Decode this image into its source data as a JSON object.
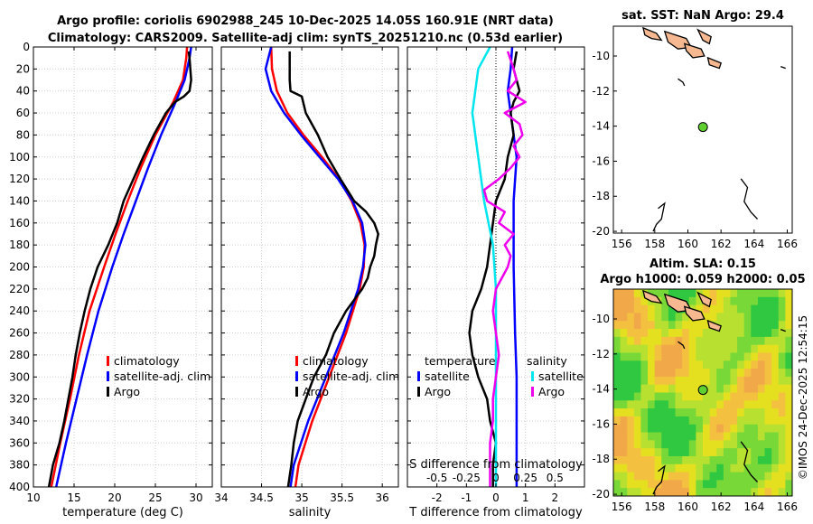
{
  "header": {
    "line1": "Argo profile: coriolis 6902988_245 10-Dec-2025 14.05S 160.91E (NRT data)",
    "line2": "Climatology: CARS2009. Satellite-adj clim: synTS_20251210.nc (0.53d earlier)"
  },
  "colors": {
    "clim": "#ff0000",
    "sat": "#0000ff",
    "argo": "#000000",
    "sat_sal": "#00e5ee",
    "argo_sal": "#ee00ee",
    "land": "#f5b890"
  },
  "chart_data": [
    {
      "id": "temperature",
      "type": "line",
      "xlabel": "temperature (deg C)",
      "ylabel": "",
      "xlim": [
        10,
        32
      ],
      "ylim": [
        400,
        0
      ],
      "xticks": [
        10,
        15,
        20,
        25,
        30
      ],
      "yticks": [
        0,
        20,
        40,
        60,
        80,
        100,
        120,
        140,
        160,
        180,
        200,
        220,
        240,
        260,
        280,
        300,
        320,
        340,
        360,
        380,
        400
      ],
      "grid": true,
      "legend": [
        {
          "label": "climatology",
          "color": "#ff0000"
        },
        {
          "label": "satellite-adj. clim",
          "color": "#0000ff"
        },
        {
          "label": "Argo",
          "color": "#000000"
        }
      ],
      "series": [
        {
          "name": "climatology",
          "color": "#ff0000",
          "depth": [
            0,
            10,
            30,
            50,
            80,
            110,
            140,
            170,
            200,
            240,
            280,
            320,
            360,
            400
          ],
          "values": [
            28.9,
            28.8,
            28.4,
            27.2,
            25.0,
            23.2,
            21.6,
            20.1,
            18.7,
            16.9,
            15.6,
            14.5,
            13.3,
            12.2
          ]
        },
        {
          "name": "satellite-adj. clim",
          "color": "#0000ff",
          "depth": [
            0,
            10,
            30,
            50,
            80,
            110,
            140,
            170,
            200,
            240,
            280,
            320,
            360,
            400
          ],
          "values": [
            29.4,
            29.2,
            28.6,
            27.5,
            25.7,
            24.1,
            22.6,
            21.1,
            19.7,
            18.0,
            16.6,
            15.3,
            14.0,
            12.8
          ]
        },
        {
          "name": "Argo",
          "color": "#000000",
          "depth": [
            4,
            10,
            20,
            30,
            40,
            45,
            50,
            60,
            80,
            100,
            120,
            140,
            160,
            180,
            200,
            220,
            240,
            260,
            280,
            300,
            320,
            340,
            360,
            380,
            400
          ],
          "values": [
            29.1,
            29.2,
            29.3,
            29.4,
            29.2,
            28.5,
            27.4,
            26.3,
            24.8,
            23.5,
            22.3,
            21.1,
            20.3,
            19.2,
            17.9,
            17.0,
            16.3,
            15.7,
            15.2,
            14.8,
            14.3,
            13.8,
            13.2,
            12.4,
            11.9
          ]
        }
      ]
    },
    {
      "id": "salinity",
      "type": "line",
      "xlabel": "salinity",
      "ylabel": "",
      "xlim": [
        34,
        36.2
      ],
      "ylim": [
        400,
        0
      ],
      "xticks": [
        34,
        34.5,
        35,
        35.5,
        36
      ],
      "grid": true,
      "legend": [
        {
          "label": "climatology",
          "color": "#ff0000"
        },
        {
          "label": "satellite-adj. clim",
          "color": "#0000ff"
        },
        {
          "label": "Argo",
          "color": "#000000"
        }
      ],
      "series": [
        {
          "name": "climatology",
          "color": "#ff0000",
          "depth": [
            0,
            20,
            40,
            60,
            80,
            100,
            120,
            140,
            160,
            180,
            200,
            220,
            260,
            300,
            340,
            380,
            400
          ],
          "values": [
            34.62,
            34.63,
            34.69,
            34.82,
            35.02,
            35.25,
            35.46,
            35.62,
            35.73,
            35.78,
            35.77,
            35.72,
            35.55,
            35.34,
            35.13,
            34.96,
            34.92
          ]
        },
        {
          "name": "satellite-adj. clim",
          "color": "#0000ff",
          "depth": [
            0,
            20,
            40,
            60,
            80,
            100,
            120,
            140,
            160,
            180,
            200,
            220,
            260,
            300,
            340,
            380,
            400
          ],
          "values": [
            34.62,
            34.55,
            34.62,
            34.78,
            34.99,
            35.22,
            35.45,
            35.63,
            35.75,
            35.79,
            35.76,
            35.7,
            35.52,
            35.3,
            35.08,
            34.9,
            34.86
          ]
        },
        {
          "name": "Argo",
          "color": "#000000",
          "depth": [
            4,
            30,
            40,
            45,
            60,
            80,
            100,
            120,
            140,
            150,
            160,
            170,
            180,
            190,
            200,
            210,
            220,
            240,
            260,
            280,
            300,
            320,
            340,
            360,
            380,
            400
          ],
          "values": [
            34.85,
            34.85,
            34.86,
            35.0,
            35.05,
            35.2,
            35.32,
            35.48,
            35.65,
            35.8,
            35.9,
            35.95,
            35.92,
            35.9,
            35.85,
            35.82,
            35.75,
            35.55,
            35.4,
            35.3,
            35.15,
            35.05,
            34.95,
            34.9,
            34.87,
            34.83
          ]
        }
      ]
    },
    {
      "id": "difference",
      "type": "line",
      "xlabel": "T difference from climatology",
      "top_xlabel": "S difference from climatology",
      "xlim": [
        -3,
        3
      ],
      "ylim": [
        400,
        0
      ],
      "xticks": [
        -2,
        -1,
        0,
        1,
        2
      ],
      "top_ticks": [
        {
          "label": "-0.5",
          "x": -2
        },
        {
          "label": "-0.25",
          "x": -1
        },
        {
          "label": "0",
          "x": 0
        },
        {
          "label": "0.25",
          "x": 1
        },
        {
          "label": "0.5",
          "x": 2
        }
      ],
      "grid": true,
      "legend_left": {
        "title": "temperature",
        "items": [
          {
            "label": "satellite",
            "color": "#0000ff"
          },
          {
            "label": "Argo",
            "color": "#000000"
          }
        ]
      },
      "legend_right": {
        "title": "salinity",
        "items": [
          {
            "label": "satellite",
            "color": "#00e5ee"
          },
          {
            "label": "Argo",
            "color": "#ee00ee"
          }
        ]
      },
      "series": [
        {
          "name": "T satellite",
          "color": "#0000ff",
          "depth": [
            0,
            20,
            40,
            60,
            100,
            140,
            200,
            260,
            300,
            360,
            400
          ],
          "values": [
            0.55,
            0.5,
            0.4,
            0.5,
            0.7,
            0.6,
            0.6,
            0.65,
            0.7,
            0.7,
            0.7
          ]
        },
        {
          "name": "T Argo",
          "color": "#000000",
          "depth": [
            4,
            20,
            40,
            50,
            60,
            80,
            100,
            120,
            140,
            160,
            180,
            200,
            220,
            240,
            260,
            280,
            300,
            320,
            340,
            360,
            380,
            400
          ],
          "values": [
            0.7,
            0.6,
            0.8,
            0.6,
            0.5,
            0.6,
            0.4,
            0.3,
            0.0,
            -0.1,
            -0.2,
            -0.3,
            -0.5,
            -0.8,
            -0.9,
            -0.8,
            -0.6,
            -0.3,
            -0.2,
            0.0,
            -0.1,
            -0.1
          ]
        },
        {
          "name": "S satellite",
          "color": "#00e5ee",
          "depth": [
            0,
            20,
            60,
            100,
            140,
            180,
            220,
            260,
            300,
            360,
            400
          ],
          "values": [
            -0.2,
            -0.6,
            -0.8,
            -0.6,
            -0.4,
            -0.1,
            0.0,
            0.0,
            0.0,
            0.0,
            0.0
          ]
        },
        {
          "name": "S Argo",
          "color": "#ee00ee",
          "depth": [
            4,
            20,
            30,
            40,
            50,
            60,
            70,
            80,
            90,
            100,
            110,
            120,
            130,
            140,
            150,
            160,
            170,
            180,
            190,
            200,
            220,
            240,
            260,
            280,
            300,
            320,
            340,
            360,
            380,
            400
          ],
          "values": [
            0.4,
            0.6,
            0.7,
            0.4,
            1.0,
            0.3,
            0.8,
            0.9,
            0.6,
            0.8,
            0.5,
            0.1,
            -0.4,
            -0.3,
            0.3,
            0.1,
            0.6,
            0.3,
            0.5,
            0.4,
            0.0,
            -0.1,
            0.0,
            0.1,
            0.0,
            -0.1,
            -0.1,
            -0.2,
            -0.2,
            -0.2
          ]
        }
      ]
    },
    {
      "id": "sst_map",
      "type": "map",
      "title": "sat. SST: NaN Argo: 29.4",
      "xlim": [
        155.5,
        166.3
      ],
      "ylim": [
        -20.1,
        -8.3
      ],
      "xticks": [
        156,
        158,
        160,
        162,
        164,
        166
      ],
      "yticks": [
        -10,
        -12,
        -14,
        -16,
        -18,
        -20
      ],
      "argo_position": {
        "lon": 160.91,
        "lat": -14.05
      }
    },
    {
      "id": "sla_map",
      "type": "map",
      "title_line1": "Altim. SLA: 0.15",
      "title_line2": "Argo h1000: 0.059 h2000: 0.05",
      "xlim": [
        155.5,
        166.3
      ],
      "ylim": [
        -20.1,
        -8.3
      ],
      "xticks": [
        156,
        158,
        160,
        162,
        164,
        166
      ],
      "yticks": [
        -10,
        -12,
        -14,
        -16,
        -18,
        -20
      ],
      "argo_position": {
        "lon": 160.91,
        "lat": -14.05
      }
    }
  ],
  "side_label": "©IMOS 24-Dec-2025 12:54:15"
}
